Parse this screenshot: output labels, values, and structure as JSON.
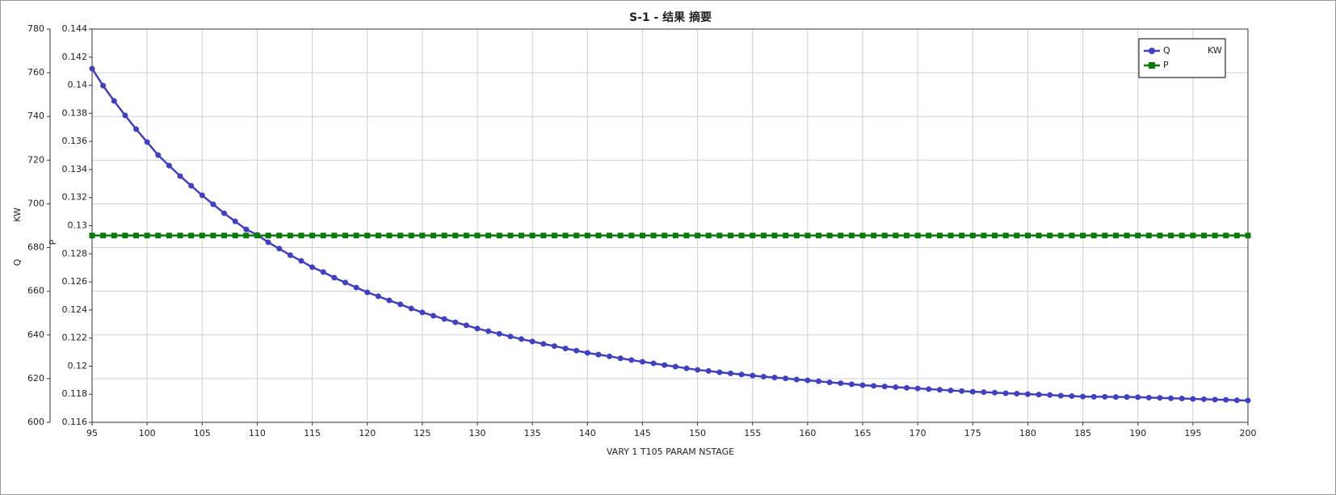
{
  "chart_data": {
    "type": "line",
    "title": "S-1 - 结果 摘要",
    "xlabel": "VARY   1 T105     PARAM     NSTAGE",
    "ylabel": "Q",
    "ylabel_unit": "KW",
    "y2label": "P",
    "x": [
      95,
      96,
      97,
      98,
      99,
      100,
      101,
      102,
      103,
      104,
      105,
      106,
      107,
      108,
      109,
      110,
      111,
      112,
      113,
      114,
      115,
      116,
      117,
      118,
      119,
      120,
      121,
      122,
      123,
      124,
      125,
      126,
      127,
      128,
      129,
      130,
      131,
      132,
      133,
      134,
      135,
      136,
      137,
      138,
      139,
      140,
      141,
      142,
      143,
      144,
      145,
      146,
      147,
      148,
      149,
      150,
      151,
      152,
      153,
      154,
      155,
      156,
      157,
      158,
      159,
      160,
      161,
      162,
      163,
      164,
      165,
      166,
      167,
      168,
      169,
      170,
      171,
      172,
      173,
      174,
      175,
      176,
      177,
      178,
      179,
      180,
      181,
      182,
      183,
      184,
      185,
      186,
      187,
      188,
      189,
      190,
      191,
      192,
      193,
      194,
      195,
      196,
      197,
      198,
      199,
      200
    ],
    "series": [
      {
        "name": "Q",
        "unit": "KW",
        "color": "#4040c0",
        "marker": "circle",
        "values": [
          761.9,
          754.1,
          747.1,
          740.5,
          734.2,
          728.3,
          722.3,
          717.5,
          712.7,
          708.3,
          703.9,
          699.8,
          695.7,
          692.0,
          688.3,
          685.8,
          682.4,
          679.5,
          676.5,
          673.9,
          671.0,
          668.8,
          666.2,
          664.0,
          661.7,
          659.5,
          657.7,
          655.8,
          654.0,
          652.1,
          650.3,
          648.8,
          647.3,
          645.8,
          644.4,
          642.9,
          641.7,
          640.5,
          639.3,
          638.1,
          637.0,
          635.9,
          634.9,
          633.8,
          632.8,
          631.8,
          631.0,
          630.2,
          629.3,
          628.5,
          627.7,
          627.0,
          626.2,
          625.5,
          624.7,
          624.0,
          623.5,
          622.9,
          622.4,
          621.9,
          621.4,
          620.9,
          620.5,
          620.1,
          619.6,
          619.2,
          618.8,
          618.3,
          617.9,
          617.4,
          617.0,
          616.7,
          616.4,
          616.1,
          615.8,
          615.5,
          615.2,
          614.9,
          614.6,
          614.3,
          614.0,
          613.8,
          613.6,
          613.3,
          613.1,
          612.9,
          612.7,
          612.5,
          612.2,
          612.0,
          611.8,
          611.7,
          611.7,
          611.6,
          611.6,
          611.5,
          611.3,
          611.2,
          611.0,
          610.9,
          610.7,
          610.6,
          610.4,
          610.3,
          610.1,
          610.0
        ]
      },
      {
        "name": "P",
        "color": "#0a7a0a",
        "marker": "square",
        "axis": "y2",
        "values": [
          0.1293,
          0.1293,
          0.1293,
          0.1293,
          0.1293,
          0.1293,
          0.1293,
          0.1293,
          0.1293,
          0.1293,
          0.1293,
          0.1293,
          0.1293,
          0.1293,
          0.1293,
          0.1293,
          0.1293,
          0.1293,
          0.1293,
          0.1293,
          0.1293,
          0.1293,
          0.1293,
          0.1293,
          0.1293,
          0.1293,
          0.1293,
          0.1293,
          0.1293,
          0.1293,
          0.1293,
          0.1293,
          0.1293,
          0.1293,
          0.1293,
          0.1293,
          0.1293,
          0.1293,
          0.1293,
          0.1293,
          0.1293,
          0.1293,
          0.1293,
          0.1293,
          0.1293,
          0.1293,
          0.1293,
          0.1293,
          0.1293,
          0.1293,
          0.1293,
          0.1293,
          0.1293,
          0.1293,
          0.1293,
          0.1293,
          0.1293,
          0.1293,
          0.1293,
          0.1293,
          0.1293,
          0.1293,
          0.1293,
          0.1293,
          0.1293,
          0.1293,
          0.1293,
          0.1293,
          0.1293,
          0.1293,
          0.1293,
          0.1293,
          0.1293,
          0.1293,
          0.1293,
          0.1293,
          0.1293,
          0.1293,
          0.1293,
          0.1293,
          0.1293,
          0.1293,
          0.1293,
          0.1293,
          0.1293,
          0.1293,
          0.1293,
          0.1293,
          0.1293,
          0.1293,
          0.1293,
          0.1293,
          0.1293,
          0.1293,
          0.1293,
          0.1293,
          0.1293,
          0.1293,
          0.1293,
          0.1293,
          0.1293,
          0.1293,
          0.1293,
          0.1293,
          0.1293,
          0.1293
        ]
      }
    ],
    "xlim": [
      95,
      200
    ],
    "xticks": [
      95,
      100,
      105,
      110,
      115,
      120,
      125,
      130,
      135,
      140,
      145,
      150,
      155,
      160,
      165,
      170,
      175,
      180,
      185,
      190,
      195,
      200
    ],
    "ylim": [
      600,
      780
    ],
    "yticks": [
      600,
      620,
      640,
      660,
      680,
      700,
      720,
      740,
      760,
      780
    ],
    "y2lim": [
      0.116,
      0.144
    ],
    "y2ticks": [
      0.116,
      0.118,
      0.12,
      0.122,
      0.124,
      0.126,
      0.128,
      0.13,
      0.132,
      0.134,
      0.136,
      0.138,
      0.14,
      0.142,
      0.144
    ],
    "grid": true,
    "legend": "upper right"
  }
}
